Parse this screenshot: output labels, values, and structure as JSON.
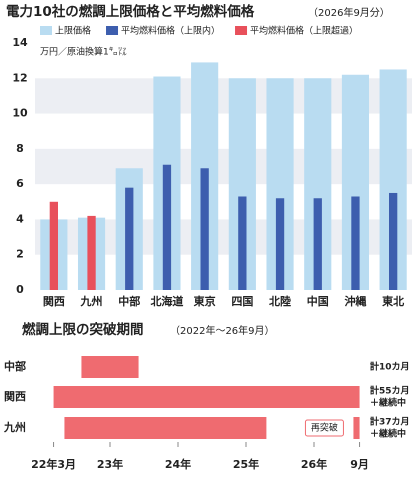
{
  "chart_data": [
    {
      "type": "bar",
      "title": "電力10社の燃調上限価格と平均燃料価格",
      "subtitle": "（2026年9月分）",
      "y_label": "万円／原油換算1㌔㍑",
      "categories": [
        "関西",
        "九州",
        "中部",
        "北海道",
        "東京",
        "四国",
        "北陸",
        "中国",
        "沖縄",
        "東北"
      ],
      "series": [
        {
          "name": "上限価格",
          "color": "#b9dcf1",
          "values": [
            4.0,
            4.1,
            6.9,
            12.1,
            12.9,
            12.0,
            12.0,
            12.0,
            12.2,
            12.5
          ]
        },
        {
          "name": "平均燃料価格（上限内）",
          "color": "#3d5eae",
          "values": [
            null,
            null,
            5.8,
            7.1,
            6.9,
            5.3,
            5.2,
            5.2,
            5.3,
            5.5
          ]
        },
        {
          "name": "平均燃料価格（上限超過）",
          "color": "#e8505b",
          "values": [
            5.0,
            4.2,
            null,
            null,
            null,
            null,
            null,
            null,
            null,
            null
          ]
        }
      ],
      "ylim": [
        0,
        14
      ],
      "yticks": [
        0,
        2,
        4,
        6,
        8,
        10,
        12,
        14
      ],
      "grid": "bands"
    },
    {
      "type": "timeline",
      "title": "燃調上限の突破期間",
      "subtitle": "（2022年～26年9月）",
      "categories": [
        "中部",
        "関西",
        "九州"
      ],
      "color": "#ef6b70",
      "periods": [
        [
          [
            2022.58,
            2023.42
          ]
        ],
        [
          [
            2022.17,
            2026.67
          ]
        ],
        [
          [
            2022.33,
            2025.3
          ],
          [
            2026.58,
            2026.67
          ]
        ]
      ],
      "notes": [
        [
          "計10カ月"
        ],
        [
          "計55カ月",
          "＋継続中"
        ],
        [
          "計37カ月",
          "＋継続中"
        ]
      ],
      "annotation": {
        "text": "再突破",
        "row": 2
      },
      "xlim": [
        2021.75,
        2026.75
      ],
      "xticks": [
        {
          "value": 2022.17,
          "label": "22年3月"
        },
        {
          "value": 2023,
          "label": "23年"
        },
        {
          "value": 2024,
          "label": "24年"
        },
        {
          "value": 2025,
          "label": "25年"
        },
        {
          "value": 2026,
          "label": "26年"
        },
        {
          "value": 2026.67,
          "label": "9月"
        }
      ]
    }
  ]
}
